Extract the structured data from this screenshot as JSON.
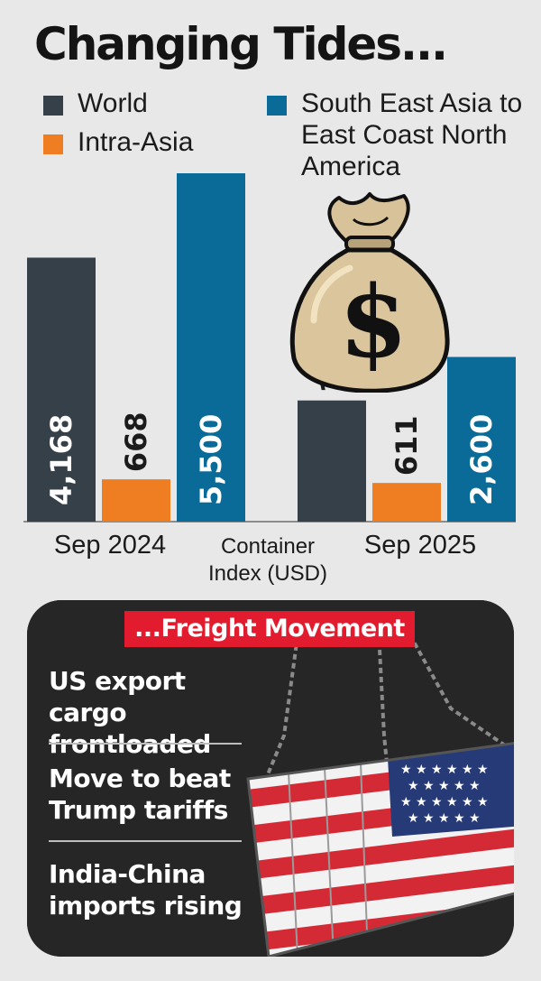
{
  "chart_data": {
    "type": "bar",
    "title": "Changing Tides...",
    "xlabel": "Container Index (USD)",
    "categories": [
      "Sep 2024",
      "Sep 2025"
    ],
    "series": [
      {
        "name": "World",
        "values": [
          4168,
          1913
        ],
        "labels": [
          "4,168",
          "1,913"
        ],
        "color": "#364049"
      },
      {
        "name": "Intra-Asia",
        "values": [
          668,
          611
        ],
        "labels": [
          "668",
          "611"
        ],
        "color": "#ef7d21"
      },
      {
        "name": "South East Asia to East Coast North America",
        "values": [
          5500,
          2600
        ],
        "labels": [
          "5,500",
          "2,600"
        ],
        "color": "#0a6b98"
      }
    ],
    "ylim": [
      0,
      5500
    ],
    "grid": false,
    "legend_position": "top"
  },
  "freight": {
    "header": "...Freight Movement",
    "points": [
      "US export cargo frontloaded",
      "Move to beat Trump tariffs",
      "India-China imports rising"
    ]
  },
  "icons": [
    "money-bag-icon",
    "us-flag-container-icon"
  ],
  "colors": {
    "background": "#e8e8e8",
    "panel": "#262626",
    "header": "#e21c2e"
  }
}
